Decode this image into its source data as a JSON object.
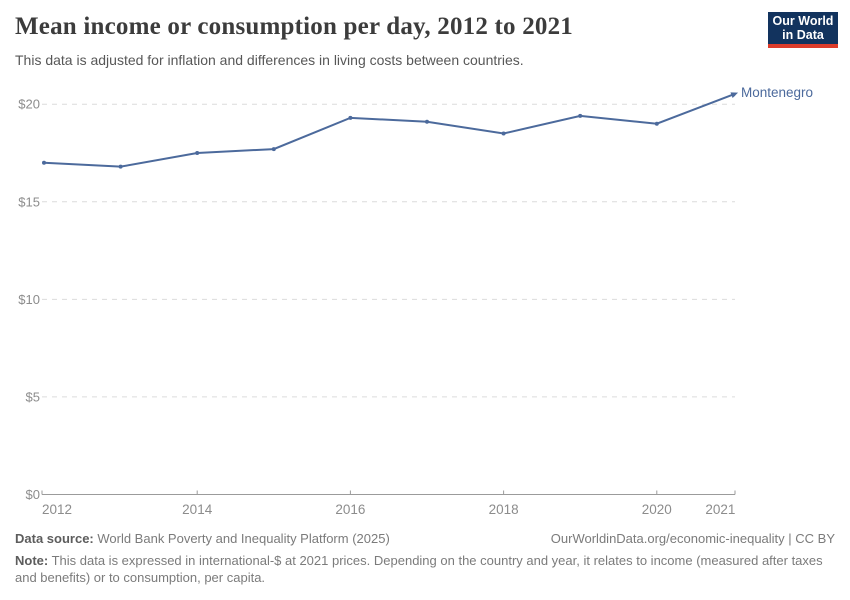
{
  "header": {
    "title": "Mean income or consumption per day, 2012 to 2021",
    "subtitle": "This data is adjusted for inflation and differences in living costs between countries.",
    "logo": {
      "line1": "Our World",
      "line2": "in Data",
      "bg_color": "#12335e",
      "bar_color": "#dc3c2b"
    }
  },
  "chart_data": {
    "type": "line",
    "title": "Mean income or consumption per day, 2012 to 2021",
    "subtitle": "This data is adjusted for inflation and differences in living costs between countries.",
    "x": [
      2012,
      2013,
      2014,
      2015,
      2016,
      2017,
      2018,
      2019,
      2020,
      2021
    ],
    "series": [
      {
        "name": "Montenegro",
        "values": [
          17.0,
          16.8,
          17.5,
          17.7,
          19.3,
          19.1,
          18.5,
          19.4,
          19.0,
          20.5
        ]
      }
    ],
    "xlabel": "",
    "ylabel": "",
    "ylim": [
      0,
      21
    ],
    "yticks": [
      0,
      5,
      10,
      15,
      20
    ],
    "ytick_labels": [
      "$0",
      "$5",
      "$10",
      "$15",
      "$20"
    ],
    "xticks": [
      2012,
      2014,
      2016,
      2018,
      2020,
      2021
    ],
    "grid": "horizontal-dashed",
    "legend_position": "end-of-line-label",
    "line_color": "#4c6a9c",
    "gridline_color": "#dcdcdc",
    "axis_color": "#9b9b9b",
    "tick_label_color": "#8c8c8c"
  },
  "footer": {
    "datasource_label": "Data source:",
    "datasource_text": " World Bank Poverty and Inequality Platform (2025)",
    "attribution": "OurWorldinData.org/economic-inequality | CC BY",
    "note_label": "Note:",
    "note_text": " This data is expressed in international-$ at 2021 prices. Depending on the country and year, it relates to income (measured after taxes and benefits) or to consumption, per capita."
  }
}
